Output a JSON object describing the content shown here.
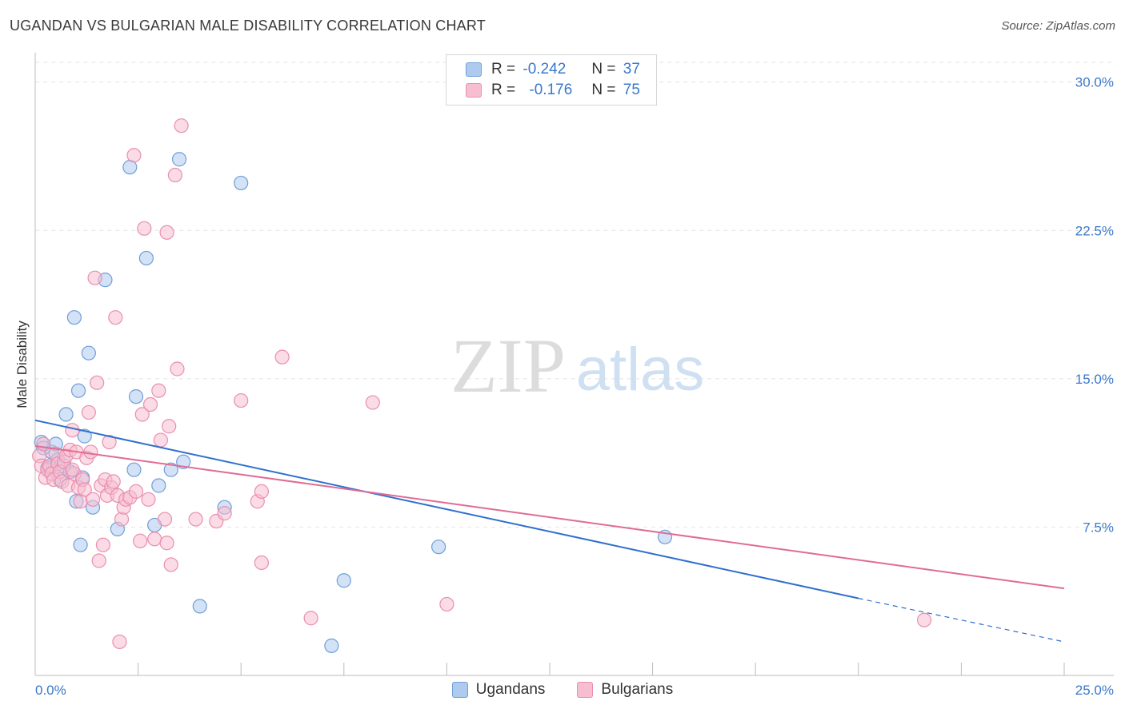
{
  "title": "UGANDAN VS BULGARIAN MALE DISABILITY CORRELATION CHART",
  "source": "Source: ZipAtlas.com",
  "watermark": {
    "zip": "ZIP",
    "atlas": "atlas"
  },
  "legend": {
    "rows": [
      {
        "r_label": "R =",
        "r_value": "-0.242",
        "n_label": "N =",
        "n_value": "37"
      },
      {
        "r_label": "R =",
        "r_value": "-0.176",
        "n_label": "N =",
        "n_value": "75"
      }
    ]
  },
  "bottom_legend": {
    "series1": "Ugandans",
    "series2": "Bulgarians"
  },
  "colors": {
    "blue_fill": "#aecbef",
    "blue_stroke": "#6f9fd8",
    "blue_line": "#2f6fce",
    "pink_fill": "#f7bdd0",
    "pink_stroke": "#e98fae",
    "pink_line": "#e06b95",
    "axis_text": "#3a78c9",
    "grid": "#e3e3e3"
  },
  "chart_data": {
    "type": "scatter",
    "title": "UGANDAN VS BULGARIAN MALE DISABILITY CORRELATION CHART",
    "xlabel": "",
    "ylabel": "Male Disability",
    "xlim": [
      0,
      25
    ],
    "ylim": [
      0,
      31
    ],
    "x_tick_labels": [
      "0.0%",
      "25.0%"
    ],
    "y_ticks": [
      7.5,
      15.0,
      22.5,
      30.0
    ],
    "y_tick_labels": [
      "7.5%",
      "15.0%",
      "22.5%",
      "30.0%"
    ],
    "grid": true,
    "legend_position": "top-center",
    "series": [
      {
        "name": "Ugandans",
        "color": "#6f9fd8",
        "trend": {
          "x0": 0.0,
          "y0": 12.9,
          "x1": 20.0,
          "y1": 3.9,
          "dashed_to_x": 25.0,
          "dashed_to_y": 1.7
        },
        "points": [
          [
            0.15,
            11.8
          ],
          [
            0.2,
            11.5
          ],
          [
            0.3,
            10.5
          ],
          [
            0.4,
            11.3
          ],
          [
            0.5,
            11.7
          ],
          [
            0.55,
            10.9
          ],
          [
            0.6,
            9.9
          ],
          [
            0.7,
            10.6
          ],
          [
            0.75,
            13.2
          ],
          [
            0.85,
            10.3
          ],
          [
            0.95,
            18.1
          ],
          [
            1.0,
            8.8
          ],
          [
            1.05,
            14.4
          ],
          [
            1.1,
            6.6
          ],
          [
            1.15,
            10.0
          ],
          [
            1.2,
            12.1
          ],
          [
            1.3,
            16.3
          ],
          [
            1.4,
            8.5
          ],
          [
            1.7,
            20.0
          ],
          [
            2.0,
            7.4
          ],
          [
            2.3,
            25.7
          ],
          [
            2.4,
            10.4
          ],
          [
            2.45,
            14.1
          ],
          [
            2.7,
            21.1
          ],
          [
            2.9,
            7.6
          ],
          [
            3.0,
            9.6
          ],
          [
            3.3,
            10.4
          ],
          [
            3.5,
            26.1
          ],
          [
            3.6,
            10.8
          ],
          [
            4.0,
            3.5
          ],
          [
            4.6,
            8.5
          ],
          [
            5.0,
            24.9
          ],
          [
            7.2,
            1.5
          ],
          [
            7.5,
            4.8
          ],
          [
            9.8,
            6.5
          ],
          [
            15.3,
            7.0
          ],
          [
            0.35,
            10.5
          ]
        ]
      },
      {
        "name": "Bulgarians",
        "color": "#e98fae",
        "trend": {
          "x0": 0.0,
          "y0": 11.6,
          "x1": 25.0,
          "y1": 4.4
        },
        "points": [
          [
            0.1,
            11.1
          ],
          [
            0.15,
            10.6
          ],
          [
            0.2,
            11.7
          ],
          [
            0.25,
            10.0
          ],
          [
            0.3,
            10.4
          ],
          [
            0.35,
            10.6
          ],
          [
            0.4,
            10.2
          ],
          [
            0.45,
            9.9
          ],
          [
            0.5,
            11.2
          ],
          [
            0.55,
            10.7
          ],
          [
            0.6,
            10.3
          ],
          [
            0.65,
            9.8
          ],
          [
            0.7,
            10.8
          ],
          [
            0.75,
            11.1
          ],
          [
            0.8,
            9.6
          ],
          [
            0.85,
            11.4
          ],
          [
            0.9,
            12.4
          ],
          [
            0.95,
            10.2
          ],
          [
            1.0,
            11.3
          ],
          [
            1.05,
            9.5
          ],
          [
            1.1,
            8.8
          ],
          [
            1.15,
            9.9
          ],
          [
            1.2,
            9.4
          ],
          [
            1.25,
            11.0
          ],
          [
            1.3,
            13.3
          ],
          [
            1.35,
            11.3
          ],
          [
            1.4,
            8.9
          ],
          [
            1.45,
            20.1
          ],
          [
            1.5,
            14.8
          ],
          [
            1.55,
            5.8
          ],
          [
            1.6,
            9.6
          ],
          [
            1.65,
            6.6
          ],
          [
            1.7,
            9.9
          ],
          [
            1.75,
            9.1
          ],
          [
            1.8,
            11.8
          ],
          [
            1.85,
            9.5
          ],
          [
            1.9,
            9.8
          ],
          [
            1.95,
            18.1
          ],
          [
            2.0,
            9.1
          ],
          [
            2.05,
            1.7
          ],
          [
            2.1,
            7.9
          ],
          [
            2.15,
            8.5
          ],
          [
            2.2,
            8.9
          ],
          [
            2.3,
            9.0
          ],
          [
            2.4,
            26.3
          ],
          [
            2.45,
            9.3
          ],
          [
            2.55,
            6.8
          ],
          [
            2.6,
            13.2
          ],
          [
            2.65,
            22.6
          ],
          [
            2.75,
            8.9
          ],
          [
            2.8,
            13.7
          ],
          [
            2.9,
            6.9
          ],
          [
            3.0,
            14.4
          ],
          [
            3.05,
            11.9
          ],
          [
            3.15,
            7.9
          ],
          [
            3.2,
            22.4
          ],
          [
            3.25,
            12.6
          ],
          [
            3.3,
            5.6
          ],
          [
            3.4,
            25.3
          ],
          [
            3.45,
            15.5
          ],
          [
            3.55,
            27.8
          ],
          [
            3.9,
            7.9
          ],
          [
            4.4,
            7.8
          ],
          [
            4.6,
            8.2
          ],
          [
            5.0,
            13.9
          ],
          [
            5.4,
            8.8
          ],
          [
            5.5,
            9.3
          ],
          [
            5.5,
            5.7
          ],
          [
            6.0,
            16.1
          ],
          [
            6.7,
            2.9
          ],
          [
            8.2,
            13.8
          ],
          [
            10.0,
            3.6
          ],
          [
            21.6,
            2.8
          ],
          [
            3.2,
            6.7
          ],
          [
            0.9,
            10.4
          ]
        ]
      }
    ]
  }
}
